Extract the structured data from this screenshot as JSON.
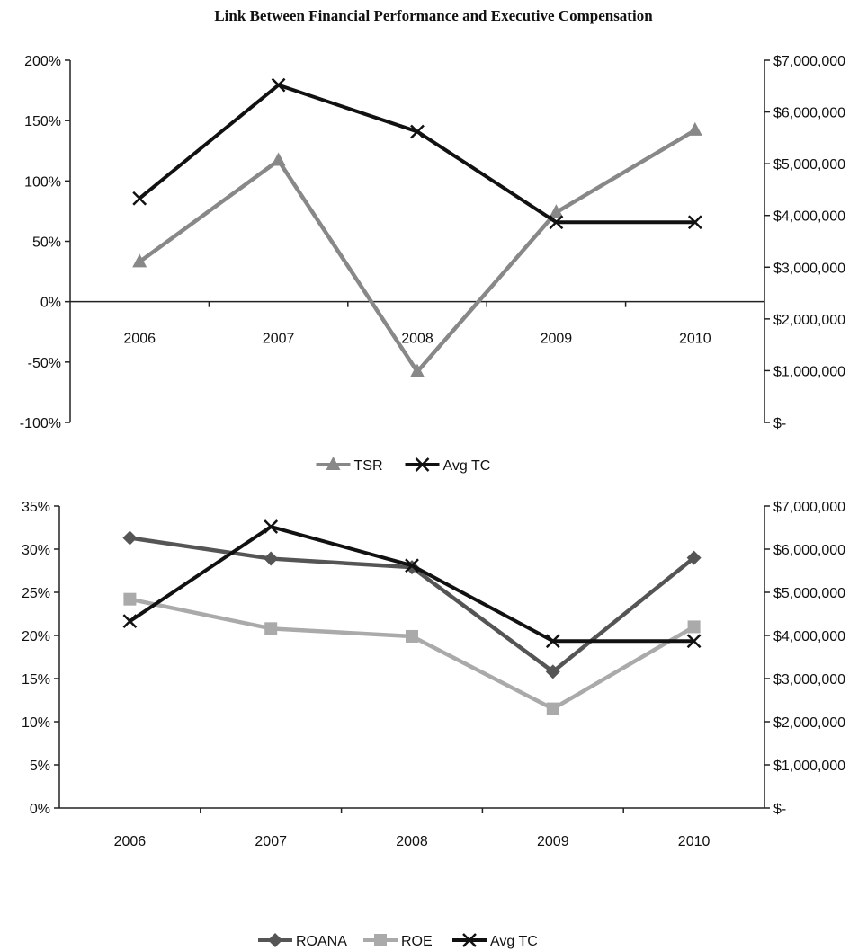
{
  "title": "Link Between Financial Performance and Executive Compensation",
  "colors": {
    "tsr": "#888888",
    "avg_tc": "#111111",
    "roana": "#555555",
    "roe": "#aaaaaa",
    "axis": "#222222"
  },
  "chart_data": [
    {
      "type": "line",
      "categories": [
        "2006",
        "2007",
        "2008",
        "2009",
        "2010"
      ],
      "y_left": {
        "ticks": [
          "200%",
          "150%",
          "100%",
          "50%",
          "0%",
          "-50%",
          "-100%"
        ],
        "ylim": [
          -100,
          200
        ]
      },
      "y_right": {
        "ticks": [
          "$7,000,000",
          "$6,000,000",
          "$5,000,000",
          "$4,000,000",
          "$3,000,000",
          "$2,000,000",
          "$1,000,000",
          "$-"
        ],
        "ylim": [
          0,
          7000000
        ]
      },
      "series": [
        {
          "name": "TSR",
          "axis": "left",
          "marker": "triangle",
          "color": "#888888",
          "values": [
            33,
            117,
            -58,
            74,
            142
          ]
        },
        {
          "name": "Avg TC",
          "axis": "right",
          "marker": "x",
          "color": "#111111",
          "values": [
            4330000,
            6520000,
            5620000,
            3870000,
            3870000
          ]
        }
      ],
      "legend": [
        "TSR",
        "Avg TC"
      ],
      "legend_position": "bottom",
      "grid": false
    },
    {
      "type": "line",
      "categories": [
        "2006",
        "2007",
        "2008",
        "2009",
        "2010"
      ],
      "y_left": {
        "ticks": [
          "35%",
          "30%",
          "25%",
          "20%",
          "15%",
          "10%",
          "5%",
          "0%"
        ],
        "ylim": [
          0,
          35
        ]
      },
      "y_right": {
        "ticks": [
          "$7,000,000",
          "$6,000,000",
          "$5,000,000",
          "$4,000,000",
          "$3,000,000",
          "$2,000,000",
          "$1,000,000",
          "$-"
        ],
        "ylim": [
          0,
          7000000
        ]
      },
      "series": [
        {
          "name": "ROANA",
          "axis": "left",
          "marker": "diamond",
          "color": "#555555",
          "values": [
            31.3,
            28.9,
            27.9,
            15.8,
            29.0
          ]
        },
        {
          "name": "ROE",
          "axis": "left",
          "marker": "square",
          "color": "#aaaaaa",
          "values": [
            24.2,
            20.8,
            19.9,
            11.5,
            21.0
          ]
        },
        {
          "name": "Avg TC",
          "axis": "right",
          "marker": "x",
          "color": "#111111",
          "values": [
            4330000,
            6520000,
            5620000,
            3870000,
            3870000
          ]
        }
      ],
      "legend": [
        "ROANA",
        "ROE",
        "Avg TC"
      ],
      "legend_position": "bottom",
      "grid": false
    }
  ]
}
